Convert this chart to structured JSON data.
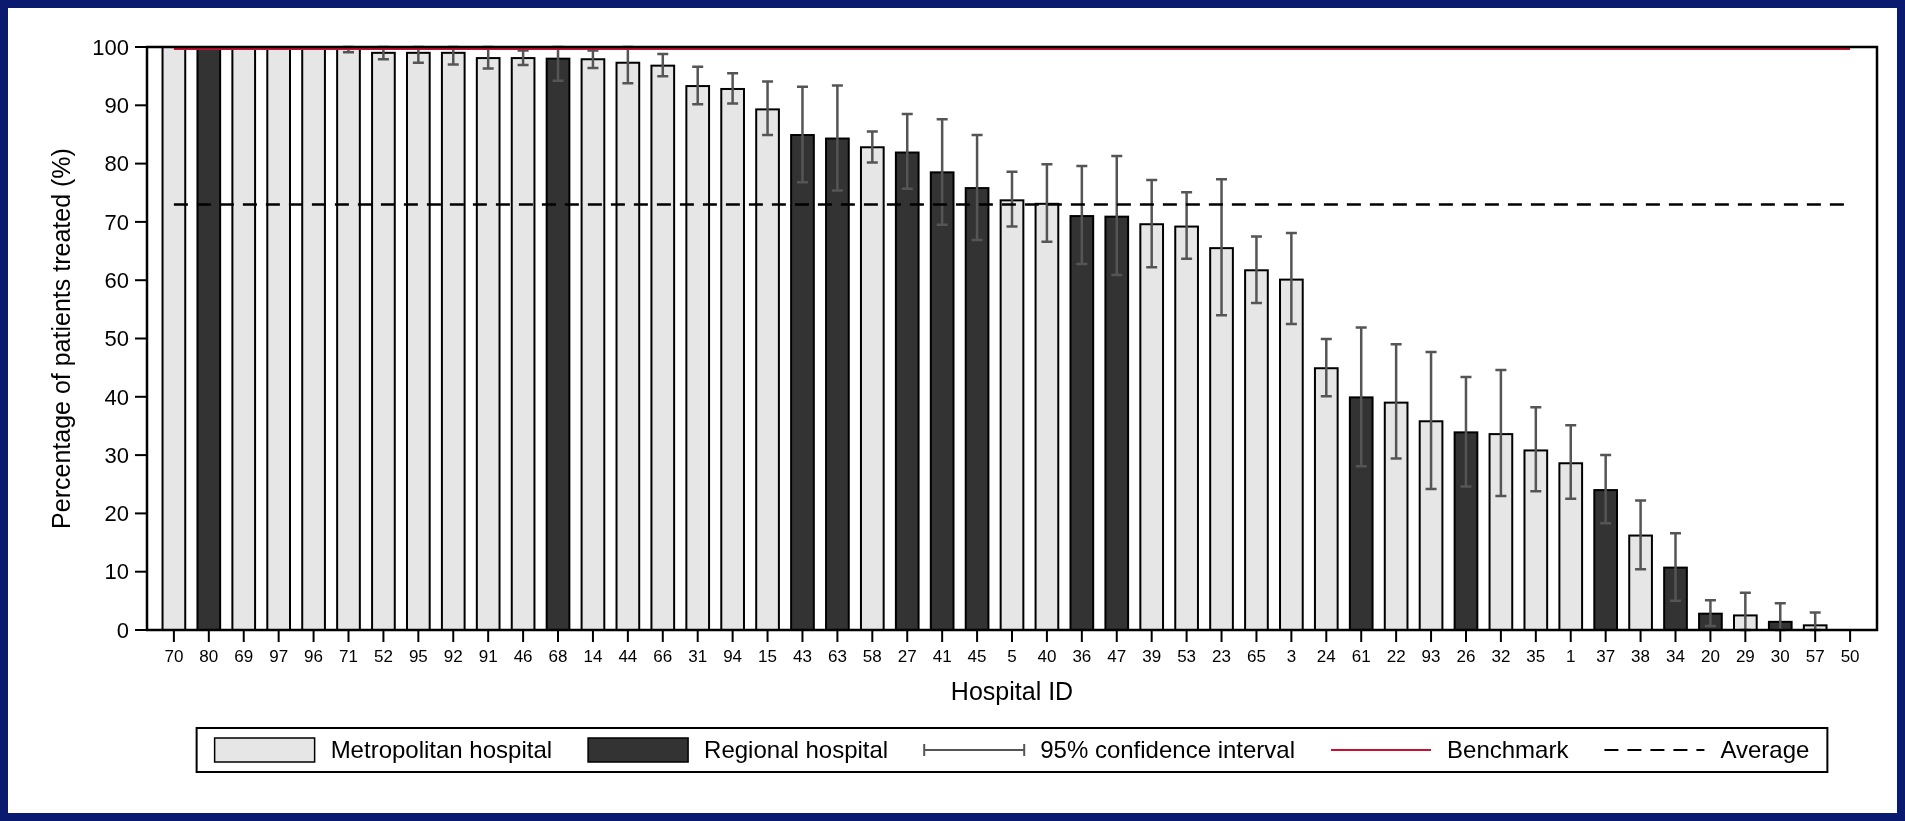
{
  "chart_data": {
    "type": "bar",
    "xlabel": "Hospital ID",
    "ylabel": "Percentage of patients treated (%)",
    "categories": [
      "70",
      "80",
      "69",
      "97",
      "96",
      "71",
      "52",
      "95",
      "92",
      "91",
      "46",
      "68",
      "14",
      "44",
      "66",
      "31",
      "94",
      "15",
      "43",
      "63",
      "58",
      "27",
      "41",
      "45",
      "5",
      "40",
      "36",
      "47",
      "39",
      "53",
      "23",
      "65",
      "3",
      "24",
      "61",
      "22",
      "93",
      "26",
      "32",
      "35",
      "1",
      "37",
      "38",
      "34",
      "20",
      "29",
      "30",
      "57",
      "50"
    ],
    "series": [
      {
        "name": "Metropolitan hospital",
        "color": "#e6e6e6",
        "values": [
          100,
          null,
          100,
          100,
          100,
          99.8,
          99.0,
          99.0,
          99.0,
          98.1,
          98.1,
          null,
          97.9,
          97.3,
          96.8,
          93.3,
          92.8,
          89.3,
          null,
          null,
          82.8,
          null,
          null,
          null,
          73.7,
          73.1,
          null,
          null,
          69.6,
          69.2,
          65.5,
          61.7,
          60.1,
          44.9,
          null,
          39.0,
          35.8,
          null,
          33.6,
          30.8,
          28.6,
          null,
          16.2,
          null,
          null,
          2.5,
          null,
          0.8,
          0
        ],
        "errors": [
          null,
          null,
          null,
          null,
          null,
          [
            99.1,
            100
          ],
          [
            97.9,
            100
          ],
          [
            97.3,
            100
          ],
          [
            97.0,
            100
          ],
          [
            96.3,
            100
          ],
          [
            96.9,
            99.4
          ],
          null,
          [
            96.4,
            99.4
          ],
          [
            93.8,
            100
          ],
          [
            95.0,
            98.8
          ],
          [
            90.2,
            96.6
          ],
          [
            90.3,
            95.5
          ],
          [
            84.9,
            94.1
          ],
          null,
          null,
          [
            80.2,
            85.5
          ],
          null,
          null,
          null,
          [
            69.2,
            78.6
          ],
          [
            66.6,
            79.9
          ],
          null,
          null,
          [
            62.2,
            77.2
          ],
          [
            63.7,
            75.1
          ],
          [
            54.0,
            77.3
          ],
          [
            56.1,
            67.5
          ],
          [
            52.5,
            68.1
          ],
          [
            40.1,
            49.9
          ],
          null,
          [
            29.4,
            49.0
          ],
          [
            24.2,
            47.7
          ],
          null,
          [
            23.0,
            44.6
          ],
          [
            23.8,
            38.2
          ],
          [
            22.5,
            35.1
          ],
          null,
          [
            10.4,
            22.2
          ],
          null,
          null,
          [
            0,
            6.4
          ],
          null,
          [
            0,
            3.0
          ],
          null
        ]
      },
      {
        "name": "Regional hospital",
        "color": "#333333",
        "values": [
          null,
          100,
          null,
          null,
          null,
          null,
          null,
          null,
          null,
          null,
          null,
          98.0,
          null,
          null,
          null,
          null,
          null,
          null,
          84.9,
          84.3,
          null,
          81.9,
          78.5,
          75.8,
          null,
          null,
          71.0,
          70.9,
          null,
          null,
          null,
          null,
          null,
          null,
          39.9,
          null,
          null,
          33.9,
          null,
          null,
          null,
          24.0,
          null,
          10.7,
          2.8,
          null,
          1.4,
          null,
          null
        ],
        "errors": [
          null,
          null,
          null,
          null,
          null,
          null,
          null,
          null,
          null,
          null,
          null,
          [
            94.2,
            100
          ],
          null,
          null,
          null,
          null,
          null,
          null,
          [
            76.8,
            93.2
          ],
          [
            75.4,
            93.4
          ],
          null,
          [
            75.7,
            88.5
          ],
          [
            69.5,
            87.6
          ],
          [
            66.9,
            84.9
          ],
          null,
          null,
          [
            62.8,
            79.6
          ],
          [
            60.9,
            81.3
          ],
          null,
          null,
          null,
          null,
          null,
          null,
          [
            28.1,
            51.9
          ],
          null,
          null,
          [
            24.6,
            43.4
          ],
          null,
          null,
          null,
          [
            18.3,
            30.0
          ],
          null,
          [
            5.0,
            16.6
          ],
          [
            0.7,
            5.1
          ],
          null,
          [
            0,
            4.6
          ],
          null,
          null
        ]
      }
    ],
    "ylim": [
      0,
      100
    ],
    "yticks": [
      0,
      10,
      20,
      30,
      40,
      50,
      60,
      70,
      80,
      90,
      100
    ],
    "ref_lines": [
      {
        "axis": "y",
        "value": 99.7,
        "label": "Benchmark",
        "color": "#c8102e",
        "line_style": "solid"
      },
      {
        "axis": "y",
        "value": 73,
        "label": "Average",
        "color": "#000000",
        "line_style": "dashed"
      }
    ],
    "annotations": [
      "95% confidence interval"
    ],
    "grid": false,
    "legend": "bottom"
  }
}
